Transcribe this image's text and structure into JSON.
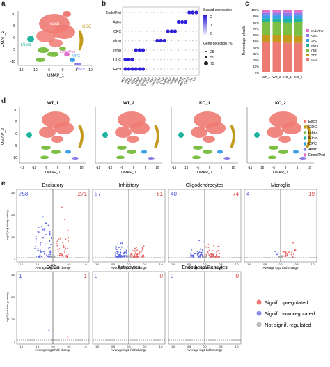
{
  "panels": {
    "a": {
      "letter": "a",
      "xlabel": "UMAP_1",
      "ylabel": "UMAP_2",
      "xticks": [
        "-15",
        "-10",
        "-5",
        "0",
        "5",
        "10"
      ],
      "yticks": [
        "10",
        "5",
        "0",
        "-5",
        "-10"
      ],
      "clusters": [
        {
          "label": "Excit",
          "color": "#ee7b73"
        },
        {
          "label": "ODC",
          "color": "#c49a1c"
        },
        {
          "label": "Micro",
          "color": "#1fb5a0"
        },
        {
          "label": "Endo/Peri",
          "color": "#e070c8"
        },
        {
          "label": "Inhib",
          "color": "#7dbf45"
        },
        {
          "label": "OPC",
          "color": "#3aa0e8"
        },
        {
          "label": "Astro",
          "color": "#8a7de8"
        }
      ]
    },
    "b": {
      "letter": "b",
      "rows": [
        "Endo/Peri",
        "Astro",
        "OPC",
        "Micro",
        "Inhib",
        "ODC",
        "Excit"
      ],
      "genes": [
        "Mbp",
        "Plp1",
        "Mobp",
        "Gad1",
        "Gad2",
        "Slc32a1",
        "Snap25",
        "Slc17a7",
        "Nrgn",
        "Cx3cr1",
        "Csf1r",
        "C1qa",
        "Pdgfra",
        "Olig1",
        "Cspg4",
        "Gfap",
        "Aqp4",
        "Aldh1l1",
        "Cldn5",
        "Flt1",
        "Vtn"
      ],
      "legend_expr_title": "Scaled expression",
      "legend_expr_ticks": [
        "2",
        "1",
        "0"
      ],
      "legend_det_title": "Gene detection (%)",
      "legend_det_ticks": [
        "25",
        "50",
        "75"
      ]
    },
    "c": {
      "letter": "c",
      "ylabel": "Percentage of cells",
      "yticks": [
        "100%",
        "90%",
        "80%",
        "70%",
        "60%",
        "50%",
        "40%",
        "30%",
        "20%",
        "10%",
        "0%"
      ]
    },
    "d": {
      "letter": "d",
      "xlabel": "UMAP_1",
      "ylabel": "UMAP_2",
      "xticks": [
        "-15",
        "-10",
        "-5",
        "0",
        "5",
        "10"
      ],
      "yticks": [
        "10",
        "5",
        "0",
        "-5",
        "-10"
      ],
      "samples": [
        "WT_1",
        "WT_2",
        "KO_1",
        "KO_2"
      ],
      "legend": [
        {
          "label": "Excit",
          "color": "#ee7b73"
        },
        {
          "label": "ODC",
          "color": "#c49a1c"
        },
        {
          "label": "Inhib",
          "color": "#7dbf45"
        },
        {
          "label": "Micro",
          "color": "#1fb5a0"
        },
        {
          "label": "OPC",
          "color": "#3aa0e8"
        },
        {
          "label": "Astro",
          "color": "#8a7de8"
        },
        {
          "label": "Endo/Peri",
          "color": "#e070c8"
        }
      ]
    },
    "e": {
      "letter": "e",
      "xlabel": "Average log2 fold change",
      "ylabel": "-log10(Adjusted p-value)",
      "xticks": [
        "-1.0",
        "-0.5",
        "0.0",
        "0.5",
        "1.0"
      ],
      "yticks_top": [
        "300",
        "200",
        "100",
        "0"
      ],
      "yticks_bottom": [
        "300",
        "200",
        "100",
        "0"
      ],
      "legend": [
        {
          "label": "Signif. upregulated",
          "color": "#ee7b73"
        },
        {
          "label": "Signif. downregulated",
          "color": "#8a8ee8"
        },
        {
          "label": "Not signif. regulated",
          "color": "#bbbbbb"
        }
      ],
      "volcanos": [
        {
          "title": "Excitatory",
          "down": "758",
          "up": "271"
        },
        {
          "title": "Inhibitory",
          "down": "57",
          "up": "61"
        },
        {
          "title": "Oligodendrocytes",
          "down": "40",
          "up": "74"
        },
        {
          "title": "Microglia",
          "down": "4",
          "up": "19"
        },
        {
          "title": "OPCs",
          "down": "1",
          "up": "1"
        },
        {
          "title": "Astrocytes",
          "down": "0",
          "up": "0"
        },
        {
          "title": "Endothelial/Pericytes",
          "down": "0",
          "up": "0"
        }
      ]
    }
  },
  "chart_data": [
    {
      "type": "bar",
      "panel": "c",
      "categories": [
        "WT_1",
        "WT_2",
        "KO_1",
        "KO_2"
      ],
      "ylabel": "Percentage of cells",
      "ylim": [
        0,
        100
      ],
      "stacked": true,
      "legend_position": "right",
      "series": [
        {
          "name": "Excit",
          "color": "#ee7b73",
          "values": [
            48,
            48,
            47,
            47
          ]
        },
        {
          "name": "ODC",
          "color": "#c49a1c",
          "values": [
            12,
            12,
            13,
            12
          ]
        },
        {
          "name": "Inhib",
          "color": "#7dbf45",
          "values": [
            20,
            20,
            19,
            21
          ]
        },
        {
          "name": "Micro",
          "color": "#1fb5a0",
          "values": [
            6,
            6,
            6,
            6
          ]
        },
        {
          "name": "OPC",
          "color": "#3aa0e8",
          "values": [
            5,
            5,
            5,
            5
          ]
        },
        {
          "name": "Astro",
          "color": "#8a7de8",
          "values": [
            5,
            5,
            6,
            5
          ]
        },
        {
          "name": "Endo/Peri",
          "color": "#e070c8",
          "values": [
            4,
            4,
            4,
            4
          ]
        }
      ]
    },
    {
      "type": "scatter",
      "panel": "b",
      "rows": [
        "Endo/Peri",
        "Astro",
        "OPC",
        "Micro",
        "Inhib",
        "ODC",
        "Excit"
      ],
      "highlight": [
        {
          "row": "Excit",
          "genes": [
            0,
            1,
            2,
            3,
            4,
            5
          ]
        },
        {
          "row": "ODC",
          "genes": [
            0,
            1,
            2
          ]
        },
        {
          "row": "Inhib",
          "genes": [
            3,
            4,
            5
          ]
        },
        {
          "row": "Micro",
          "genes": [
            9,
            10,
            11
          ]
        },
        {
          "row": "OPC",
          "genes": [
            12,
            13,
            14
          ]
        },
        {
          "row": "Astro",
          "genes": [
            15,
            16,
            17
          ]
        },
        {
          "row": "Endo/Peri",
          "genes": [
            18,
            19,
            20
          ]
        }
      ]
    }
  ]
}
